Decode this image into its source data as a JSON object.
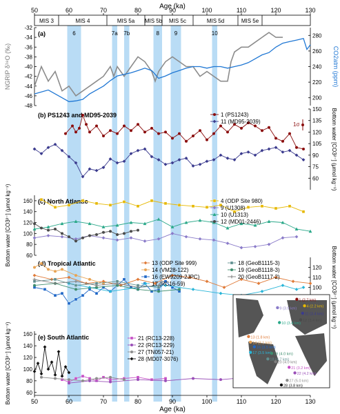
{
  "figure": {
    "top_axis_label": "Age (ka)",
    "bottom_axis_label": "Age (ka)",
    "x_ticks": [
      50,
      60,
      70,
      80,
      90,
      100,
      110,
      120,
      130
    ],
    "x_range": [
      50,
      130
    ],
    "shading_color": "#b9dcf5",
    "shaded_intervals": [
      {
        "label": "6",
        "start": 59.5,
        "end": 63.5
      },
      {
        "label": "7a",
        "start": 72.5,
        "end": 74.0
      },
      {
        "label": "7b",
        "start": 76.0,
        "end": 77.5
      },
      {
        "label": "8",
        "start": 84.5,
        "end": 87.0
      },
      {
        "label": "9",
        "start": 89.5,
        "end": 92.5
      },
      {
        "label": "10",
        "start": 101.5,
        "end": 103.0
      }
    ],
    "mis_stages": [
      {
        "label": "MIS 3",
        "start": 50,
        "end": 57
      },
      {
        "label": "MIS 4",
        "start": 57,
        "end": 71
      },
      {
        "label": "MIS 5a",
        "start": 71,
        "end": 82
      },
      {
        "label": "MIS 5b",
        "start": 82,
        "end": 87
      },
      {
        "label": "MIS 5c",
        "start": 87,
        "end": 96
      },
      {
        "label": "MIS 5d",
        "start": 96,
        "end": 109
      },
      {
        "label": "MIS 5e",
        "start": 109,
        "end": 116
      }
    ]
  },
  "chart_data": [
    {
      "type": "line",
      "panel": "(a)",
      "title": "",
      "ylabel_left": "NGRIP δ¹⁸O (‰)",
      "ylabel_right": "CO2atm (ppm)",
      "ylim_left": [
        -48,
        -32
      ],
      "yticks_left": [
        -32,
        -34,
        -36,
        -38,
        -40,
        -42,
        -44,
        -46,
        -48
      ],
      "ylim_right": [
        190,
        290
      ],
      "yticks_right": [
        200,
        220,
        240,
        260,
        280
      ],
      "series": [
        {
          "name": "NGRIP δ18O",
          "color": "#8c8c8c",
          "axis": "left",
          "x": [
            50,
            52,
            54,
            56,
            58,
            60,
            62,
            64,
            66,
            68,
            70,
            72,
            73,
            74,
            76,
            78,
            80,
            82,
            84,
            85,
            86,
            88,
            90,
            92,
            94,
            96,
            98,
            100,
            102,
            104,
            106,
            107,
            108,
            110,
            112,
            114,
            116,
            118,
            120,
            122
          ],
          "y": [
            -44,
            -40,
            -43,
            -41,
            -45,
            -44,
            -46,
            -45,
            -44,
            -43,
            -42,
            -40,
            -42,
            -40,
            -42,
            -40,
            -38,
            -39,
            -41,
            -43,
            -41,
            -39,
            -38,
            -39,
            -40,
            -40,
            -42,
            -41,
            -42,
            -43,
            -43,
            -39,
            -37,
            -36,
            -36,
            -35,
            -34,
            -33,
            -34,
            -34
          ]
        },
        {
          "name": "CO2atm",
          "color": "#1f77d4",
          "axis": "right",
          "x": [
            50,
            54,
            58,
            60,
            62,
            64,
            66,
            68,
            70,
            72,
            74,
            76,
            78,
            80,
            82,
            84,
            86,
            88,
            90,
            92,
            94,
            96,
            98,
            100,
            102,
            104,
            106,
            108,
            110,
            112,
            114,
            116,
            118,
            120,
            122,
            124,
            126,
            128,
            129,
            130
          ],
          "y": [
            205,
            210,
            200,
            195,
            196,
            198,
            205,
            210,
            215,
            222,
            228,
            230,
            232,
            235,
            238,
            235,
            225,
            228,
            232,
            235,
            238,
            240,
            240,
            238,
            240,
            240,
            238,
            240,
            242,
            245,
            250,
            255,
            258,
            265,
            270,
            272,
            274,
            276,
            262,
            268
          ]
        }
      ]
    },
    {
      "type": "line",
      "panel": "(b)",
      "title": "PS1243 and MD95-2039",
      "ylabel_right": "Bottom water [CO3²⁻] (μmol kg⁻¹)",
      "ylim": [
        45,
        150
      ],
      "yticks": [
        60,
        75,
        90,
        105,
        120,
        135,
        150
      ],
      "annotation": "1σ",
      "series": [
        {
          "name": "1 (PS1243)",
          "color": "#8b0d0d",
          "marker": "circle",
          "x": [
            59,
            61,
            62,
            63,
            64,
            65,
            66,
            68,
            70,
            72,
            74,
            76,
            78,
            80,
            82,
            84,
            86,
            88,
            90,
            92,
            94,
            96,
            98,
            100,
            102,
            104,
            106,
            108,
            110,
            112,
            114,
            116,
            118,
            120,
            122,
            124,
            126,
            128
          ],
          "y": [
            118,
            128,
            120,
            125,
            142,
            130,
            120,
            128,
            115,
            122,
            118,
            128,
            122,
            130,
            120,
            125,
            118,
            120,
            112,
            118,
            108,
            115,
            122,
            110,
            118,
            128,
            120,
            130,
            125,
            132,
            128,
            122,
            126,
            112,
            108,
            118,
            100,
            98
          ]
        },
        {
          "name": "11 (MD95-2039)",
          "color": "#3b3b8e",
          "marker": "diamond",
          "x": [
            50,
            52,
            54,
            56,
            58,
            60,
            62,
            64,
            66,
            68,
            70,
            72,
            74,
            76,
            78,
            80,
            82,
            84,
            86,
            88,
            90,
            92,
            94,
            96,
            98,
            100,
            102,
            104,
            106,
            108,
            110,
            112,
            114,
            116,
            118,
            120,
            122,
            124,
            126,
            128
          ],
          "y": [
            98,
            92,
            100,
            104,
            96,
            88,
            80,
            62,
            72,
            70,
            74,
            85,
            80,
            82,
            92,
            96,
            98,
            88,
            84,
            78,
            80,
            84,
            86,
            76,
            78,
            82,
            84,
            90,
            86,
            84,
            92,
            94,
            90,
            96,
            98,
            100,
            94,
            96,
            90,
            84
          ]
        }
      ]
    },
    {
      "type": "line",
      "panel": "(c)",
      "title": "North Atlantic",
      "ylabel_left": "Bottom water [CO3²⁻] (μmol kg⁻¹)",
      "ylim": [
        60,
        170
      ],
      "yticks": [
        60,
        80,
        100,
        120,
        140,
        160
      ],
      "series": [
        {
          "name": "4 (ODP Site 980)",
          "color": "#e6b800",
          "marker": "square",
          "x": [
            52,
            56,
            60,
            64,
            68,
            72,
            76,
            80,
            84,
            88,
            92,
            96,
            100,
            104,
            108,
            112,
            116,
            120,
            124,
            128
          ],
          "y": [
            162,
            148,
            152,
            160,
            155,
            152,
            158,
            150,
            160,
            155,
            152,
            150,
            148,
            152,
            140,
            148,
            150,
            146,
            150,
            140
          ]
        },
        {
          "name": "9 (U1308)",
          "color": "#8a7bc9",
          "marker": "diamond",
          "x": [
            50,
            54,
            58,
            62,
            66,
            70,
            74,
            78,
            82,
            86,
            90,
            94,
            98,
            102,
            106,
            110,
            114,
            118,
            122,
            126
          ],
          "y": [
            92,
            96,
            94,
            90,
            96,
            92,
            88,
            92,
            86,
            90,
            100,
            94,
            90,
            88,
            82,
            74,
            76,
            80,
            92,
            94
          ]
        },
        {
          "name": "10 (U1313)",
          "color": "#2aa889",
          "marker": "triangle",
          "x": [
            50,
            54,
            58,
            62,
            66,
            70,
            74,
            78,
            82,
            86,
            90,
            94,
            98,
            102,
            106,
            110,
            114,
            118,
            122,
            126,
            130
          ],
          "y": [
            108,
            112,
            118,
            122,
            118,
            112,
            115,
            120,
            118,
            126,
            112,
            120,
            124,
            120,
            110,
            118,
            115,
            122,
            120,
            108,
            104
          ]
        },
        {
          "name": "12 (MD01-2446)",
          "color": "#4a4a4a",
          "marker": "circle",
          "x": [
            50,
            52,
            54,
            56,
            58,
            60,
            62,
            64,
            66,
            68,
            70,
            72,
            74,
            76,
            78,
            80
          ],
          "y": [
            118,
            110,
            106,
            108,
            100,
            94,
            86,
            92,
            96,
            98,
            102,
            104,
            98,
            100,
            104,
            106
          ]
        }
      ]
    },
    {
      "type": "line",
      "panel": "(d)",
      "title": "Tropical Atlantic",
      "ylabel_right": "Bottom water [CO3²⁻] (μmol kg⁻¹)",
      "ylim": [
        70,
        130
      ],
      "yticks": [
        80,
        90,
        100,
        110,
        120
      ],
      "series": [
        {
          "name": "13 (ODP Site 999)",
          "color": "#e07b39",
          "marker": "diamond",
          "x": [
            50,
            55,
            60,
            65,
            70,
            75,
            80,
            85,
            90,
            95,
            100,
            105,
            110,
            115,
            120,
            125,
            130
          ],
          "y": [
            112,
            108,
            110,
            104,
            106,
            102,
            108,
            104,
            112,
            110,
            106,
            100,
            108,
            104,
            110,
            106,
            104
          ]
        },
        {
          "name": "14 (VM28-122)",
          "color": "#e8a455",
          "marker": "circle",
          "x": [
            50,
            52,
            54,
            56,
            58,
            62,
            66,
            70
          ],
          "y": [
            120,
            124,
            118,
            116,
            118,
            112,
            108,
            104
          ]
        },
        {
          "name": "16 (EW9209-2JPC)",
          "color": "#1f67c7",
          "marker": "square",
          "x": [
            50,
            53,
            56,
            58,
            60,
            62,
            64,
            66,
            68,
            70,
            72,
            74,
            76,
            78,
            80,
            82,
            84,
            86,
            88,
            90,
            92
          ],
          "y": [
            100,
            98,
            92,
            94,
            84,
            88,
            92,
            98,
            94,
            100,
            96,
            102,
            108,
            100,
            98,
            104,
            96,
            98,
            106,
            100,
            96
          ]
        },
        {
          "name": "17 (RC16-59)",
          "color": "#29b5d8",
          "marker": "diamond",
          "x": [
            60,
            66,
            72,
            80,
            88,
            96,
            104,
            110,
            116,
            122,
            126,
            128
          ],
          "y": [
            104,
            100,
            96,
            100,
            102,
            98,
            94,
            92,
            96,
            102,
            98,
            100
          ]
        },
        {
          "name": "18 (GeoB1115-3)",
          "color": "#5f8f8f",
          "marker": "square",
          "x": [
            50,
            56,
            62,
            68,
            74,
            80,
            86
          ],
          "y": [
            106,
            108,
            102,
            104,
            106,
            102,
            100
          ]
        },
        {
          "name": "19 (GeoB1118-3)",
          "color": "#3e8e6e",
          "marker": "circle",
          "x": [
            50,
            56,
            62,
            68,
            74,
            80,
            86,
            92
          ],
          "y": [
            102,
            104,
            98,
            100,
            102,
            98,
            96,
            98
          ]
        },
        {
          "name": "20 (GeoB1117-2)",
          "color": "#7d7d7d",
          "marker": "plus",
          "x": [
            50,
            56,
            62,
            68,
            74,
            80,
            86
          ],
          "y": [
            108,
            104,
            106,
            102,
            104,
            100,
            102
          ]
        }
      ]
    },
    {
      "type": "line",
      "panel": "(e)",
      "title": "South Atlantic",
      "ylabel_left": "Bottom water [CO3²⁻] (μmol kg⁻¹)",
      "ylim": [
        55,
        165
      ],
      "yticks": [
        60,
        80,
        100,
        120,
        140,
        160
      ],
      "series": [
        {
          "name": "21 (RC13-228)",
          "color": "#c64fc6",
          "marker": "square",
          "x": [
            58,
            60,
            62,
            64,
            66,
            68,
            70,
            72,
            76,
            80,
            84,
            88
          ],
          "y": [
            82,
            78,
            84,
            88,
            84,
            80,
            86,
            82,
            84,
            86,
            82,
            84
          ]
        },
        {
          "name": "22 (RC13-229)",
          "color": "#9a4fb8",
          "marker": "circle",
          "x": [
            60,
            66,
            72,
            80,
            88,
            96,
            104,
            112
          ],
          "y": [
            76,
            80,
            78,
            82,
            80,
            84,
            82,
            86
          ]
        },
        {
          "name": "27 (TN057-21)",
          "color": "#8d8d8d",
          "marker": "circle",
          "x": [
            52,
            56,
            60,
            64,
            68,
            72,
            76
          ],
          "y": [
            86,
            84,
            82,
            80,
            84,
            86,
            82
          ]
        },
        {
          "name": "28 (MD07-3076)",
          "color": "#111111",
          "marker": "diamond",
          "x": [
            50,
            51,
            52,
            53,
            54,
            55,
            56,
            57,
            58,
            59,
            60
          ],
          "y": [
            96,
            110,
            92,
            138,
            100,
            112,
            90,
            130,
            88,
            104,
            94
          ]
        }
      ]
    }
  ],
  "inset_map": {
    "sites": [
      {
        "label": "1 (2.7 km)",
        "color": "#8b0d0d"
      },
      {
        "label": "9 (3.9 km)",
        "color": "#8a7bc9"
      },
      {
        "label": "4 (2.2 km)",
        "color": "#e6b800"
      },
      {
        "label": "11 (3.4 km)",
        "color": "#3b3b8e"
      },
      {
        "label": "12 (3.4 km)",
        "color": "#4a4a4a"
      },
      {
        "label": "10 (3.4 km)",
        "color": "#2aa889"
      },
      {
        "label": "13 (1.8 km)",
        "color": "#e07b39"
      },
      {
        "label": "14 (3.1 km)",
        "color": "#e8a455"
      },
      {
        "label": "16 (3.5 km)",
        "color": "#1f67c7"
      },
      {
        "label": "17 (3.5 km)",
        "color": "#29b5d8"
      },
      {
        "label": "18 (4.7 km)",
        "color": "#5f8f8f"
      },
      {
        "label": "19 (4.0 km)",
        "color": "#3e8e6e"
      },
      {
        "label": "20 (4.0 km)",
        "color": "#7d7d7d"
      },
      {
        "label": "21 (3.2 km)",
        "color": "#c64fc6"
      },
      {
        "label": "22 (4.2 km)",
        "color": "#9a4fb8"
      },
      {
        "label": "27 (5.0 km)",
        "color": "#8d8d8d"
      },
      {
        "label": "28 (3.8 km)",
        "color": "#111111"
      }
    ]
  }
}
